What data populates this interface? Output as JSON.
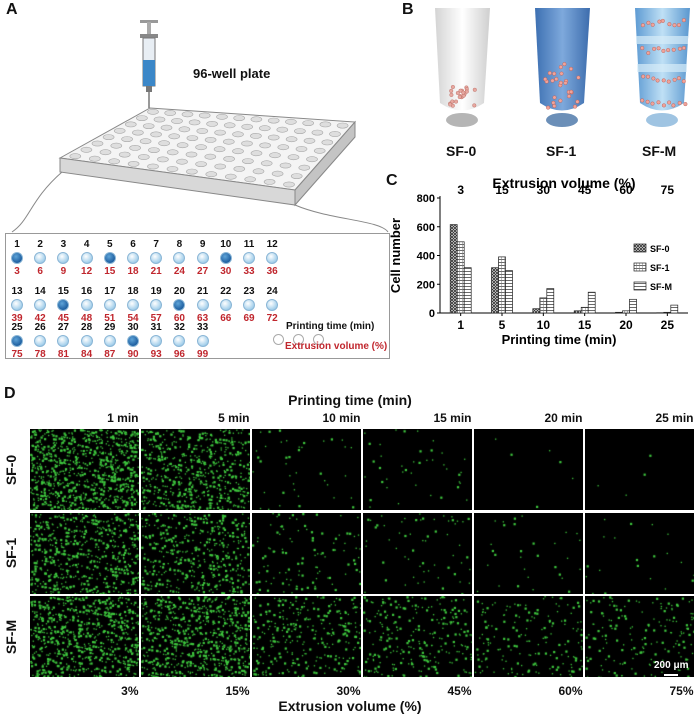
{
  "panels": {
    "a": "A",
    "b": "B",
    "c": "C",
    "d": "D"
  },
  "panel_a": {
    "plate_label": "96-well plate",
    "wells": [
      {
        "n": "1",
        "v": "3",
        "dark": true
      },
      {
        "n": "2",
        "v": "6",
        "dark": false
      },
      {
        "n": "3",
        "v": "9",
        "dark": false
      },
      {
        "n": "4",
        "v": "12",
        "dark": false
      },
      {
        "n": "5",
        "v": "15",
        "dark": true
      },
      {
        "n": "6",
        "v": "18",
        "dark": false
      },
      {
        "n": "7",
        "v": "21",
        "dark": false
      },
      {
        "n": "8",
        "v": "24",
        "dark": false
      },
      {
        "n": "9",
        "v": "27",
        "dark": false
      },
      {
        "n": "10",
        "v": "30",
        "dark": true
      },
      {
        "n": "11",
        "v": "33",
        "dark": false
      },
      {
        "n": "12",
        "v": "36",
        "dark": false
      },
      {
        "n": "13",
        "v": "39",
        "dark": false
      },
      {
        "n": "14",
        "v": "42",
        "dark": false
      },
      {
        "n": "15",
        "v": "45",
        "dark": true
      },
      {
        "n": "16",
        "v": "48",
        "dark": false
      },
      {
        "n": "17",
        "v": "51",
        "dark": false
      },
      {
        "n": "18",
        "v": "54",
        "dark": false
      },
      {
        "n": "19",
        "v": "57",
        "dark": false
      },
      {
        "n": "20",
        "v": "60",
        "dark": true
      },
      {
        "n": "21",
        "v": "63",
        "dark": false
      },
      {
        "n": "22",
        "v": "66",
        "dark": false
      },
      {
        "n": "23",
        "v": "69",
        "dark": false
      },
      {
        "n": "24",
        "v": "72",
        "dark": false
      },
      {
        "n": "25",
        "v": "75",
        "dark": true
      },
      {
        "n": "26",
        "v": "78",
        "dark": false
      },
      {
        "n": "27",
        "v": "81",
        "dark": false
      },
      {
        "n": "28",
        "v": "84",
        "dark": false
      },
      {
        "n": "29",
        "v": "87",
        "dark": false
      },
      {
        "n": "30",
        "v": "90",
        "dark": true
      },
      {
        "n": "31",
        "v": "93",
        "dark": false
      },
      {
        "n": "32",
        "v": "96",
        "dark": false
      },
      {
        "n": "33",
        "v": "99",
        "dark": false
      }
    ],
    "legend_time": "Printing time (min)",
    "legend_volume": "Extrusion volume (%)"
  },
  "panel_b": {
    "labels": [
      "SF-0",
      "SF-1",
      "SF-M"
    ]
  },
  "chart_data": {
    "type": "bar",
    "categories": [
      "1",
      "5",
      "10",
      "15",
      "20",
      "25"
    ],
    "top_categories": [
      "3",
      "15",
      "30",
      "45",
      "60",
      "75"
    ],
    "title": "Extrusion volume (%)",
    "xlabel": "Printing time (min)",
    "ylabel": "Cell number",
    "ylim": [
      0,
      800
    ],
    "yticks": [
      "0",
      "200",
      "400",
      "600",
      "800"
    ],
    "legend_position": "right",
    "series": [
      {
        "name": "SF-0",
        "values": [
          615,
          315,
          30,
          15,
          5,
          2
        ]
      },
      {
        "name": "SF-1",
        "values": [
          495,
          390,
          105,
          40,
          15,
          5
        ]
      },
      {
        "name": "SF-M",
        "values": [
          315,
          295,
          170,
          145,
          95,
          55
        ]
      }
    ]
  },
  "panel_d": {
    "title": "Printing time (min)",
    "columns": [
      "1 min",
      "5 min",
      "10 min",
      "15 min",
      "20 min",
      "25 min"
    ],
    "rows": [
      "SF-0",
      "SF-1",
      "SF-M"
    ],
    "volumes": [
      "3%",
      "15%",
      "30%",
      "45%",
      "60%",
      "75%"
    ],
    "xlabel": "Extrusion volume (%)",
    "scale_bar": "200 μm",
    "densities": [
      [
        900,
        600,
        40,
        40,
        6,
        4
      ],
      [
        600,
        450,
        110,
        60,
        30,
        20
      ],
      [
        700,
        700,
        300,
        260,
        180,
        170
      ]
    ],
    "cell_color": "#3ec83e"
  }
}
